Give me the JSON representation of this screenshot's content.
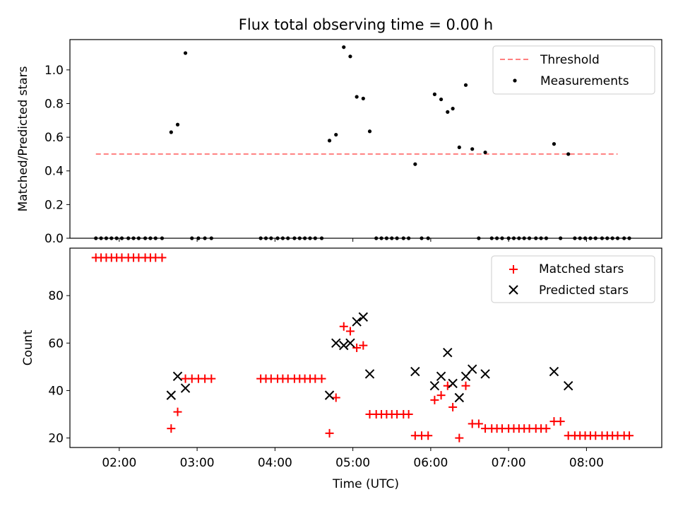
{
  "chart_data": [
    {
      "type": "scatter",
      "title": "Flux total observing time = 0.00 h",
      "xlabel": "",
      "ylabel": "Matched/Predicted stars",
      "ylim": [
        0,
        1.18
      ],
      "xlim": [
        "01:22",
        "08:58"
      ],
      "yticks": [
        "0.0",
        "0.2",
        "0.4",
        "0.6",
        "0.8",
        "1.0"
      ],
      "ytick_values": [
        0,
        0.2,
        0.4,
        0.6,
        0.8,
        1.0
      ],
      "legend_position": "top-right",
      "threshold": {
        "name": "Threshold",
        "value": 0.5,
        "x_start": "01:42",
        "x_end": "08:24",
        "color": "#ff7f7f"
      },
      "series": [
        {
          "name": "Measurements",
          "color": "#000000",
          "points": [
            [
              "01:42",
              0.0
            ],
            [
              "01:46",
              0.0
            ],
            [
              "01:50",
              0.0
            ],
            [
              "01:54",
              0.0
            ],
            [
              "01:58",
              0.0
            ],
            [
              "02:02",
              0.0
            ],
            [
              "02:07",
              0.0
            ],
            [
              "02:11",
              0.0
            ],
            [
              "02:15",
              0.0
            ],
            [
              "02:20",
              0.0
            ],
            [
              "02:24",
              0.0
            ],
            [
              "02:28",
              0.0
            ],
            [
              "02:33",
              0.0
            ],
            [
              "02:40",
              0.63
            ],
            [
              "02:45",
              0.675
            ],
            [
              "02:51",
              1.1
            ],
            [
              "02:56",
              0.0
            ],
            [
              "03:01",
              0.0
            ],
            [
              "03:06",
              0.0
            ],
            [
              "03:11",
              0.0
            ],
            [
              "03:49",
              0.0
            ],
            [
              "03:53",
              0.0
            ],
            [
              "03:57",
              0.0
            ],
            [
              "04:02",
              0.0
            ],
            [
              "04:06",
              0.0
            ],
            [
              "04:10",
              0.0
            ],
            [
              "04:15",
              0.0
            ],
            [
              "04:19",
              0.0
            ],
            [
              "04:23",
              0.0
            ],
            [
              "04:27",
              0.0
            ],
            [
              "04:31",
              0.0
            ],
            [
              "04:36",
              0.0
            ],
            [
              "04:42",
              0.58
            ],
            [
              "04:47",
              0.615
            ],
            [
              "04:53",
              1.135
            ],
            [
              "04:58",
              1.08
            ],
            [
              "05:03",
              0.84
            ],
            [
              "05:08",
              0.83
            ],
            [
              "05:13",
              0.635
            ],
            [
              "05:18",
              0.0
            ],
            [
              "05:22",
              0.0
            ],
            [
              "05:26",
              0.0
            ],
            [
              "05:30",
              0.0
            ],
            [
              "05:34",
              0.0
            ],
            [
              "05:39",
              0.0
            ],
            [
              "05:43",
              0.0
            ],
            [
              "05:48",
              0.44
            ],
            [
              "05:53",
              0.0
            ],
            [
              "05:58",
              0.0
            ],
            [
              "06:03",
              0.855
            ],
            [
              "06:08",
              0.825
            ],
            [
              "06:13",
              0.75
            ],
            [
              "06:17",
              0.77
            ],
            [
              "06:22",
              0.54
            ],
            [
              "06:27",
              0.91
            ],
            [
              "06:32",
              0.53
            ],
            [
              "06:37",
              0.0
            ],
            [
              "06:42",
              0.51
            ],
            [
              "06:47",
              0.0
            ],
            [
              "06:51",
              0.0
            ],
            [
              "06:55",
              0.0
            ],
            [
              "07:00",
              0.0
            ],
            [
              "07:04",
              0.0
            ],
            [
              "07:08",
              0.0
            ],
            [
              "07:12",
              0.0
            ],
            [
              "07:16",
              0.0
            ],
            [
              "07:21",
              0.0
            ],
            [
              "07:25",
              0.0
            ],
            [
              "07:29",
              0.0
            ],
            [
              "07:35",
              0.56
            ],
            [
              "07:40",
              0.0
            ],
            [
              "07:46",
              0.5
            ],
            [
              "07:51",
              0.0
            ],
            [
              "07:55",
              0.0
            ],
            [
              "07:59",
              0.0
            ],
            [
              "08:03",
              0.0
            ],
            [
              "08:07",
              0.0
            ],
            [
              "08:12",
              0.0
            ],
            [
              "08:16",
              0.0
            ],
            [
              "08:20",
              0.0
            ],
            [
              "08:24",
              0.0
            ],
            [
              "08:29",
              0.0
            ],
            [
              "08:33",
              0.0
            ]
          ]
        }
      ]
    },
    {
      "type": "scatter",
      "title": "",
      "xlabel": "Time (UTC)",
      "ylabel": "Count",
      "ylim": [
        16,
        100
      ],
      "xlim": [
        "01:22",
        "08:58"
      ],
      "xticks": [
        "02:00",
        "03:00",
        "04:00",
        "05:00",
        "06:00",
        "07:00",
        "08:00"
      ],
      "yticks": [
        "20",
        "40",
        "60",
        "80"
      ],
      "ytick_values": [
        20,
        40,
        60,
        80
      ],
      "legend_position": "top-right",
      "series": [
        {
          "name": "Matched stars",
          "marker": "plus",
          "color": "#ff0000",
          "points": [
            [
              "01:42",
              96
            ],
            [
              "01:46",
              96
            ],
            [
              "01:50",
              96
            ],
            [
              "01:54",
              96
            ],
            [
              "01:58",
              96
            ],
            [
              "02:02",
              96
            ],
            [
              "02:07",
              96
            ],
            [
              "02:11",
              96
            ],
            [
              "02:15",
              96
            ],
            [
              "02:20",
              96
            ],
            [
              "02:24",
              96
            ],
            [
              "02:28",
              96
            ],
            [
              "02:33",
              96
            ],
            [
              "02:40",
              24
            ],
            [
              "02:45",
              31
            ],
            [
              "02:51",
              45
            ],
            [
              "02:56",
              45
            ],
            [
              "03:01",
              45
            ],
            [
              "03:06",
              45
            ],
            [
              "03:11",
              45
            ],
            [
              "03:49",
              45
            ],
            [
              "03:53",
              45
            ],
            [
              "03:57",
              45
            ],
            [
              "04:02",
              45
            ],
            [
              "04:06",
              45
            ],
            [
              "04:10",
              45
            ],
            [
              "04:15",
              45
            ],
            [
              "04:19",
              45
            ],
            [
              "04:23",
              45
            ],
            [
              "04:27",
              45
            ],
            [
              "04:31",
              45
            ],
            [
              "04:36",
              45
            ],
            [
              "04:42",
              22
            ],
            [
              "04:47",
              37
            ],
            [
              "04:53",
              67
            ],
            [
              "04:58",
              65
            ],
            [
              "05:03",
              58
            ],
            [
              "05:08",
              59
            ],
            [
              "05:13",
              30
            ],
            [
              "05:18",
              30
            ],
            [
              "05:22",
              30
            ],
            [
              "05:26",
              30
            ],
            [
              "05:30",
              30
            ],
            [
              "05:34",
              30
            ],
            [
              "05:39",
              30
            ],
            [
              "05:43",
              30
            ],
            [
              "05:48",
              21
            ],
            [
              "05:53",
              21
            ],
            [
              "05:58",
              21
            ],
            [
              "06:03",
              36
            ],
            [
              "06:08",
              38
            ],
            [
              "06:13",
              42
            ],
            [
              "06:17",
              33
            ],
            [
              "06:22",
              20
            ],
            [
              "06:27",
              42
            ],
            [
              "06:32",
              26
            ],
            [
              "06:37",
              26
            ],
            [
              "06:42",
              24
            ],
            [
              "06:47",
              24
            ],
            [
              "06:51",
              24
            ],
            [
              "06:55",
              24
            ],
            [
              "07:00",
              24
            ],
            [
              "07:04",
              24
            ],
            [
              "07:08",
              24
            ],
            [
              "07:12",
              24
            ],
            [
              "07:16",
              24
            ],
            [
              "07:21",
              24
            ],
            [
              "07:25",
              24
            ],
            [
              "07:29",
              24
            ],
            [
              "07:35",
              27
            ],
            [
              "07:40",
              27
            ],
            [
              "07:46",
              21
            ],
            [
              "07:51",
              21
            ],
            [
              "07:55",
              21
            ],
            [
              "07:59",
              21
            ],
            [
              "08:03",
              21
            ],
            [
              "08:07",
              21
            ],
            [
              "08:12",
              21
            ],
            [
              "08:16",
              21
            ],
            [
              "08:20",
              21
            ],
            [
              "08:24",
              21
            ],
            [
              "08:29",
              21
            ],
            [
              "08:33",
              21
            ]
          ]
        },
        {
          "name": "Predicted stars",
          "marker": "x",
          "color": "#000000",
          "points": [
            [
              "02:40",
              38
            ],
            [
              "02:45",
              46
            ],
            [
              "02:51",
              41
            ],
            [
              "04:42",
              38
            ],
            [
              "04:47",
              60
            ],
            [
              "04:53",
              59
            ],
            [
              "04:58",
              60
            ],
            [
              "05:03",
              69
            ],
            [
              "05:08",
              71
            ],
            [
              "05:13",
              47
            ],
            [
              "05:48",
              48
            ],
            [
              "06:03",
              42
            ],
            [
              "06:08",
              46
            ],
            [
              "06:13",
              56
            ],
            [
              "06:17",
              43
            ],
            [
              "06:22",
              37
            ],
            [
              "06:27",
              46
            ],
            [
              "06:32",
              49
            ],
            [
              "06:42",
              47
            ],
            [
              "07:35",
              48
            ],
            [
              "07:46",
              42
            ]
          ]
        }
      ]
    }
  ]
}
